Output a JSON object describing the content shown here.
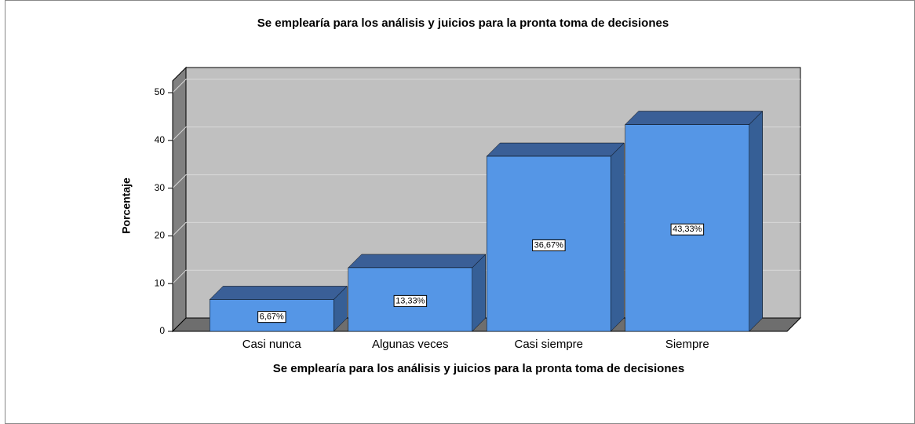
{
  "chart_data": {
    "type": "bar3d",
    "title": "Se emplearía para los análisis y juicios para la pronta toma de decisiones",
    "x_label": "Se emplearía para los análisis y juicios para la pronta toma de decisiones",
    "y_label": "Porcentaje",
    "categories": [
      "Casi nunca",
      "Algunas veces",
      "Casi siempre",
      "Siempre"
    ],
    "values": [
      6.67,
      13.33,
      36.67,
      43.33
    ],
    "value_labels": [
      "6,67%",
      "13,33%",
      "36,67%",
      "43,33%"
    ],
    "color": "#5596e6",
    "ylim": [
      0,
      50
    ],
    "yticks": [
      0,
      10,
      20,
      30,
      40,
      50
    ],
    "grid": true
  }
}
